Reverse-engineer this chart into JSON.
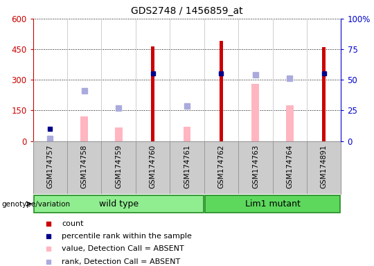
{
  "title": "GDS2748 / 1456859_at",
  "samples": [
    "GSM174757",
    "GSM174758",
    "GSM174759",
    "GSM174760",
    "GSM174761",
    "GSM174762",
    "GSM174763",
    "GSM174764",
    "GSM174891"
  ],
  "count_values": [
    22,
    0,
    0,
    465,
    0,
    490,
    0,
    0,
    460
  ],
  "percentile_rank": [
    10,
    0,
    0,
    55,
    0,
    55,
    0,
    0,
    55
  ],
  "absent_value": [
    0,
    120,
    65,
    0,
    70,
    0,
    280,
    175,
    0
  ],
  "absent_rank": [
    12,
    245,
    163,
    0,
    170,
    0,
    325,
    308,
    0
  ],
  "groups": [
    {
      "label": "wild type",
      "start": 0,
      "end": 4,
      "color": "#90EE90"
    },
    {
      "label": "Lim1 mutant",
      "start": 5,
      "end": 8,
      "color": "#5DD85D"
    }
  ],
  "ylim_left": [
    0,
    600
  ],
  "ylim_right": [
    0,
    100
  ],
  "yticks_left": [
    0,
    150,
    300,
    450,
    600
  ],
  "yticks_right": [
    0,
    25,
    50,
    75,
    100
  ],
  "ytick_labels_right": [
    "0",
    "25",
    "50",
    "75",
    "100%"
  ],
  "count_color": "#cc0000",
  "percentile_color": "#00008B",
  "absent_value_color": "#FFB6C1",
  "absent_rank_color": "#AAAADD",
  "group_border_color": "#228B22",
  "axis_color_left": "#cc0000",
  "axis_color_right": "#0000cc",
  "col_bg_color": "#cccccc",
  "plot_bg_color": "#ffffff"
}
